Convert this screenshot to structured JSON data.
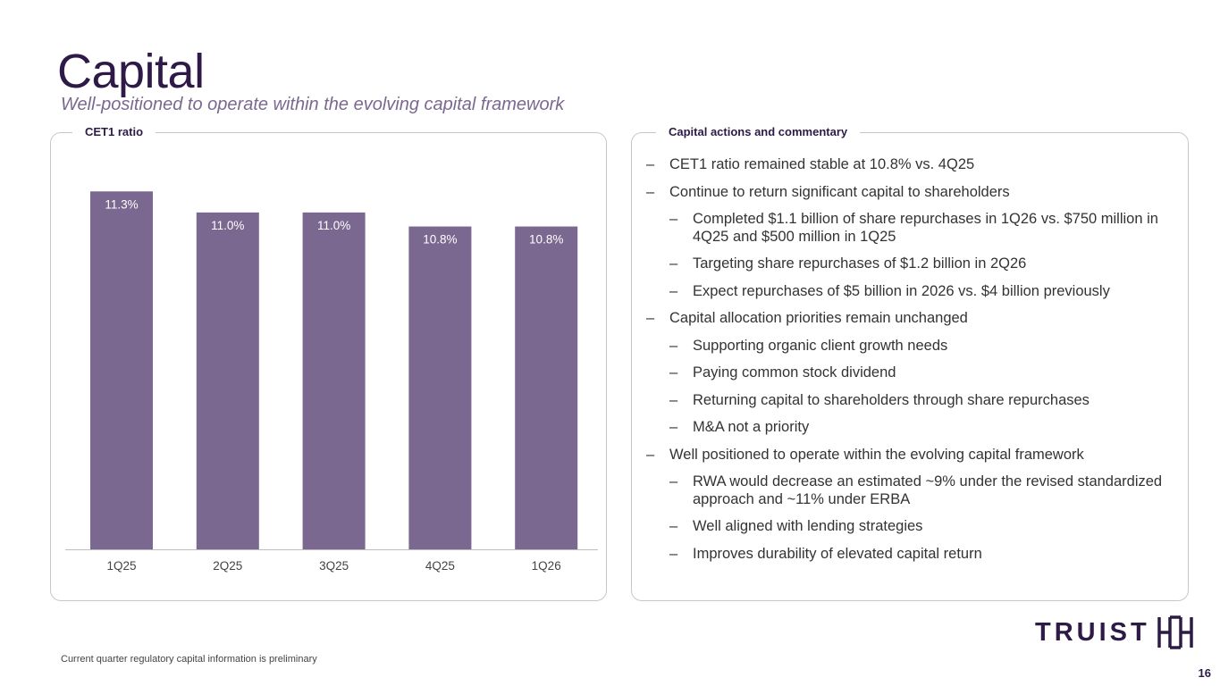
{
  "header": {
    "title": "Capital",
    "subtitle": "Well-positioned to operate within the evolving capital framework"
  },
  "left_panel": {
    "label": "CET1 ratio"
  },
  "right_panel": {
    "label": "Capital actions and commentary",
    "bullets": [
      {
        "level": 1,
        "text": "CET1 ratio remained stable at 10.8% vs. 4Q25"
      },
      {
        "level": 1,
        "text": "Continue to return significant capital to shareholders"
      },
      {
        "level": 2,
        "text": "Completed $1.1 billion of share repurchases in 1Q26 vs. $750 million in 4Q25 and $500 million in 1Q25"
      },
      {
        "level": 2,
        "text": "Targeting share repurchases of $1.2 billion in 2Q26"
      },
      {
        "level": 2,
        "text": "Expect repurchases of $5 billion in 2026 vs. $4 billion previously"
      },
      {
        "level": 1,
        "text": "Capital allocation priorities remain unchanged"
      },
      {
        "level": 2,
        "text": "Supporting organic client growth needs"
      },
      {
        "level": 2,
        "text": "Paying common stock dividend"
      },
      {
        "level": 2,
        "text": "Returning capital to shareholders through share repurchases"
      },
      {
        "level": 2,
        "text": "M&A not a priority"
      },
      {
        "level": 1,
        "text": "Well positioned to operate within the evolving capital framework"
      },
      {
        "level": 2,
        "text": "RWA would decrease an estimated ~9% under the revised standardized approach and ~11% under ERBA"
      },
      {
        "level": 2,
        "text": "Well aligned with lending strategies"
      },
      {
        "level": 2,
        "text": "Improves durability of elevated capital return"
      }
    ]
  },
  "footer": {
    "note": "Current quarter regulatory capital information is preliminary",
    "logo_text": "TRUIST",
    "page_number": "16"
  },
  "colors": {
    "bar": "#7b6890",
    "title": "#2e1a47",
    "subtitle": "#7b6890",
    "border": "#c9c5ce"
  },
  "chart_data": {
    "type": "bar",
    "title": "CET1 ratio",
    "categories": [
      "1Q25",
      "2Q25",
      "3Q25",
      "4Q25",
      "1Q26"
    ],
    "values": [
      11.3,
      11.0,
      11.0,
      10.8,
      10.8
    ],
    "data_labels": [
      "11.3%",
      "11.0%",
      "11.0%",
      "10.8%",
      "10.8%"
    ],
    "value_format": "percent",
    "xlabel": "",
    "ylabel": "",
    "ylim": [
      6.2,
      11.8
    ],
    "grid": false,
    "legend": "none"
  }
}
